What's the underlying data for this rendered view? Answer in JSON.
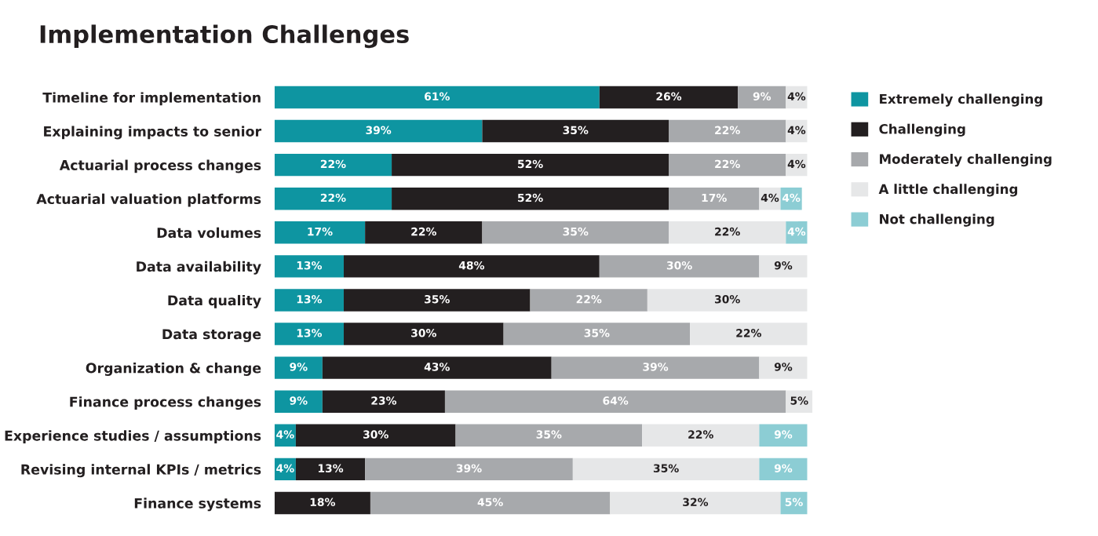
{
  "chart_data": {
    "type": "bar",
    "orientation": "horizontal",
    "stacked": true,
    "title": "Implementation Challenges",
    "categories": [
      "Timeline for implementation",
      "Explaining impacts to senior",
      "Actuarial process changes",
      "Actuarial valuation platforms",
      "Data volumes",
      "Data availability",
      "Data quality",
      "Data storage",
      "Organization & change",
      "Finance process changes",
      "Experience studies / assumptions",
      "Revising internal KPIs / metrics",
      "Finance systems"
    ],
    "series": [
      {
        "name": "Extremely challenging",
        "color": "#0e95a1",
        "values": [
          61,
          39,
          22,
          22,
          17,
          13,
          13,
          13,
          9,
          9,
          4,
          4,
          null
        ],
        "value_labels": [
          "61%",
          "39%",
          "22%",
          "22%",
          "17%",
          "13%",
          "13%",
          "13%",
          "9%",
          "9%",
          "4%",
          "4%",
          null
        ]
      },
      {
        "name": "Challenging",
        "color": "#231f20",
        "values": [
          26,
          35,
          52,
          52,
          22,
          48,
          35,
          30,
          43,
          23,
          30,
          13,
          18
        ],
        "value_labels": [
          "26%",
          "35%",
          "52%",
          "52%",
          "22%",
          "48%",
          "35%",
          "30%",
          "43%",
          "23%",
          "30%",
          "13%",
          "18%"
        ]
      },
      {
        "name": "Moderately challenging",
        "color": "#a7a9ac",
        "values": [
          9,
          22,
          22,
          17,
          35,
          30,
          22,
          35,
          39,
          64,
          35,
          39,
          45
        ],
        "value_labels": [
          "9%",
          "22%",
          "22%",
          "17%",
          "35%",
          "30%",
          "22%",
          "35%",
          "39%",
          "64%",
          "35%",
          "39%",
          "45%"
        ]
      },
      {
        "name": "A little challenging",
        "color": "#e6e7e8",
        "values": [
          4,
          4,
          4,
          4,
          22,
          9,
          30,
          22,
          9,
          5,
          22,
          35,
          32
        ],
        "value_labels": [
          "4%",
          "4%",
          "4%",
          "4%",
          "22%",
          "9%",
          "30%",
          "22%",
          "9%",
          "5%",
          "22%",
          "35%",
          "32%"
        ]
      },
      {
        "name": "Not challenging",
        "color": "#8ccdd4",
        "values": [
          null,
          null,
          null,
          4,
          4,
          null,
          null,
          null,
          null,
          null,
          9,
          9,
          5
        ],
        "value_labels": [
          null,
          null,
          null,
          "4%",
          "4%",
          null,
          null,
          null,
          null,
          null,
          "9%",
          "9%",
          "5%"
        ]
      }
    ],
    "tick_labels": "y",
    "legend": "top right"
  }
}
